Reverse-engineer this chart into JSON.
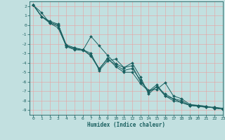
{
  "xlabel": "Humidex (Indice chaleur)",
  "xlim": [
    -0.5,
    23
  ],
  "ylim": [
    -9.5,
    2.5
  ],
  "yticks": [
    2,
    1,
    0,
    -1,
    -2,
    -3,
    -4,
    -5,
    -6,
    -7,
    -8,
    -9
  ],
  "xticks": [
    0,
    1,
    2,
    3,
    4,
    5,
    6,
    7,
    8,
    9,
    10,
    11,
    12,
    13,
    14,
    15,
    16,
    17,
    18,
    19,
    20,
    21,
    22,
    23
  ],
  "bg_color": "#c2e0e0",
  "line_color": "#1a6060",
  "grid_color": "#e8a0a0",
  "series": [
    [
      2.1,
      0.9,
      0.2,
      -0.3,
      -2.2,
      -2.5,
      -2.6,
      -3.3,
      -4.7,
      -3.5,
      -4.4,
      -5.0,
      -5.0,
      -6.2,
      -7.0,
      -6.3,
      -7.5,
      -7.8,
      -8.2,
      -8.5,
      -8.6,
      -8.7,
      -8.7,
      -8.8
    ],
    [
      2.1,
      1.3,
      0.2,
      -0.1,
      -2.3,
      -2.6,
      -2.7,
      -1.2,
      -2.2,
      -3.2,
      -4.1,
      -4.5,
      -4.0,
      -5.5,
      -7.3,
      -6.5,
      -7.5,
      -8.0,
      -8.2,
      -8.5,
      -8.6,
      -8.7,
      -8.7,
      -8.9
    ],
    [
      2.1,
      0.9,
      0.4,
      0.1,
      -2.1,
      -2.4,
      -2.6,
      -3.0,
      -4.8,
      -3.8,
      -3.6,
      -4.5,
      -4.3,
      -6.0,
      -6.9,
      -6.8,
      -6.1,
      -7.5,
      -7.8,
      -8.4,
      -8.5,
      -8.6,
      -8.8,
      -8.9
    ],
    [
      2.1,
      0.9,
      0.3,
      0.0,
      -2.2,
      -2.5,
      -2.6,
      -3.2,
      -4.6,
      -3.6,
      -4.2,
      -4.8,
      -4.6,
      -5.8,
      -7.1,
      -6.5,
      -7.3,
      -7.8,
      -8.0,
      -8.5,
      -8.5,
      -8.6,
      -8.8,
      -8.9
    ]
  ],
  "figsize": [
    3.2,
    2.0
  ],
  "dpi": 100,
  "linewidth": 0.7,
  "markersize": 2.0,
  "tick_labelsize": 4.5,
  "xlabel_fontsize": 5.5
}
